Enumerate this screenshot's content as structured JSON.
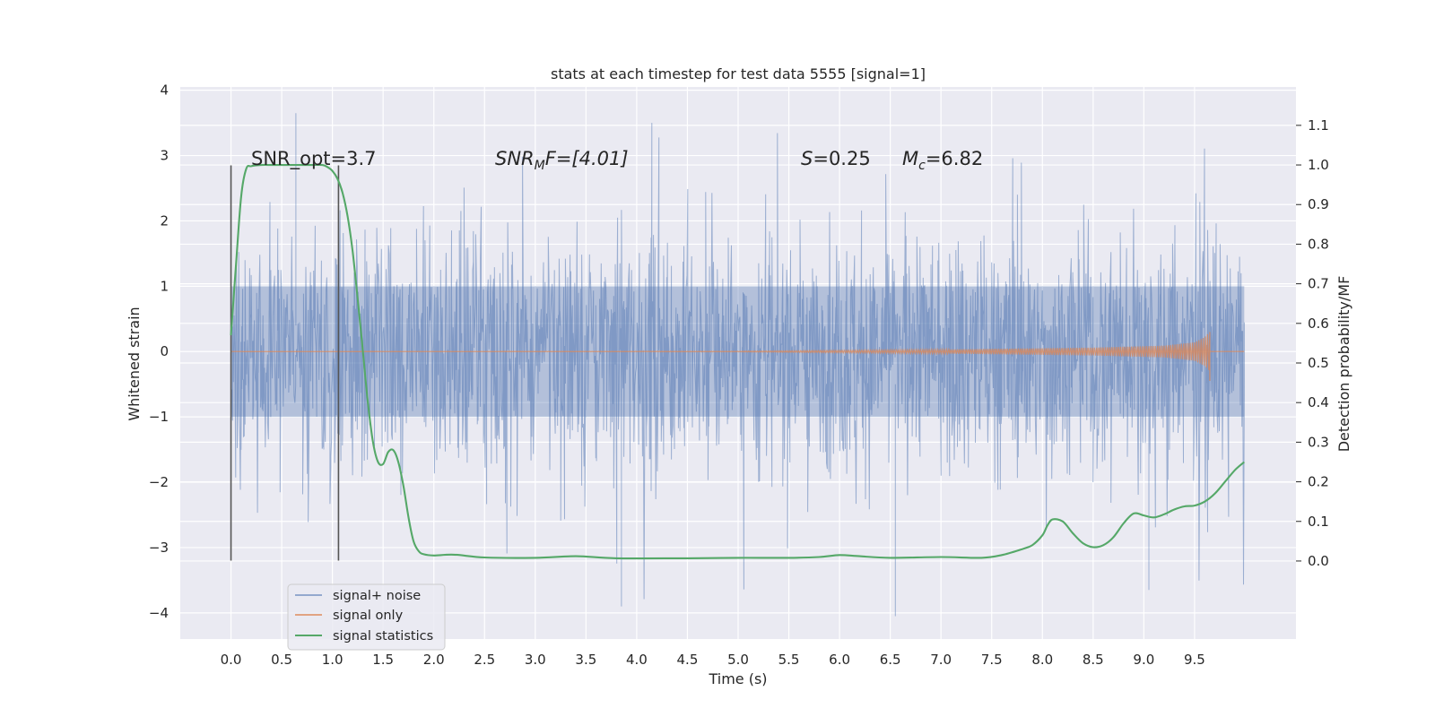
{
  "chart_data": {
    "type": "line",
    "title": "stats at each timestep for test data 5555 [signal=1]",
    "xlabel": "Time (s)",
    "ylabel": "Whitened strain",
    "ylabel_right": "Detection probability/MF",
    "xlim": [
      -0.5,
      10.5
    ],
    "ylim": [
      -4.4,
      4.05
    ],
    "ylim_right": [
      -0.197,
      1.197
    ],
    "x_ticks": [
      "0.0",
      "0.5",
      "1.0",
      "1.5",
      "2.0",
      "2.5",
      "3.0",
      "3.5",
      "4.0",
      "4.5",
      "5.0",
      "5.5",
      "6.0",
      "6.5",
      "7.0",
      "7.5",
      "8.0",
      "8.5",
      "9.0",
      "9.5"
    ],
    "y_ticks": [
      "4",
      "3",
      "2",
      "1",
      "0",
      "−1",
      "−2",
      "−3",
      "−4"
    ],
    "y_ticks_right": [
      "1.1",
      "1.0",
      "0.9",
      "0.8",
      "0.7",
      "0.6",
      "0.5",
      "0.4",
      "0.3",
      "0.2",
      "0.1",
      "0.0"
    ],
    "grid": true,
    "legend_position": "lower-left",
    "annotations": {
      "snr_opt": "SNR_opt=3.7",
      "snr_mf_main": "SNR",
      "snr_mf_sub": "M",
      "snr_mf_rest": "F=[4.01]",
      "s_main": "S",
      "s_rest": "=0.25",
      "mc_main": "M",
      "mc_sub": "c",
      "mc_rest": "=6.82"
    },
    "vertical_markers": [
      0.0,
      1.06
    ],
    "series": [
      {
        "name": "signal+ noise",
        "color": "#4c72b0",
        "x_range": [
          0.0,
          9.99
        ],
        "typical_amplitude": 1.6,
        "peak_max": 3.65,
        "peak_min": -4.05
      },
      {
        "name": "signal only",
        "color": "#dd8452",
        "x_range": [
          0.0,
          9.65
        ],
        "envelope": {
          "x": [
            0.0,
            5.0,
            7.0,
            8.5,
            9.2,
            9.5,
            9.6,
            9.65
          ],
          "amp": [
            0.0,
            0.005,
            0.03,
            0.06,
            0.09,
            0.14,
            0.22,
            0.3
          ]
        }
      },
      {
        "name": "signal statistics",
        "color": "#55a868",
        "axis": "right",
        "x": [
          0.0,
          0.05,
          0.1,
          0.15,
          0.2,
          0.3,
          0.4,
          0.5,
          0.6,
          0.7,
          0.8,
          0.9,
          0.95,
          1.0,
          1.05,
          1.1,
          1.15,
          1.2,
          1.25,
          1.3,
          1.35,
          1.4,
          1.45,
          1.5,
          1.55,
          1.6,
          1.65,
          1.7,
          1.75,
          1.8,
          1.85,
          1.9,
          2.0,
          2.2,
          2.5,
          3.0,
          3.4,
          3.8,
          4.5,
          5.0,
          5.5,
          5.8,
          6.0,
          6.2,
          6.5,
          7.0,
          7.4,
          7.6,
          7.8,
          7.9,
          8.0,
          8.05,
          8.1,
          8.2,
          8.3,
          8.4,
          8.5,
          8.6,
          8.7,
          8.8,
          8.9,
          9.0,
          9.1,
          9.2,
          9.3,
          9.4,
          9.5,
          9.6,
          9.7,
          9.8,
          9.9,
          9.99
        ],
        "y": [
          0.57,
          0.75,
          0.92,
          0.99,
          0.997,
          1.0,
          1.0,
          1.0,
          1.0,
          1.0,
          1.0,
          1.0,
          0.995,
          0.985,
          0.965,
          0.93,
          0.87,
          0.78,
          0.66,
          0.53,
          0.4,
          0.3,
          0.25,
          0.245,
          0.275,
          0.28,
          0.25,
          0.19,
          0.11,
          0.05,
          0.025,
          0.017,
          0.014,
          0.016,
          0.009,
          0.008,
          0.012,
          0.007,
          0.007,
          0.008,
          0.008,
          0.01,
          0.015,
          0.012,
          0.008,
          0.01,
          0.008,
          0.015,
          0.03,
          0.04,
          0.065,
          0.09,
          0.105,
          0.1,
          0.07,
          0.045,
          0.035,
          0.04,
          0.06,
          0.095,
          0.12,
          0.115,
          0.11,
          0.118,
          0.13,
          0.138,
          0.14,
          0.15,
          0.17,
          0.2,
          0.23,
          0.25
        ]
      }
    ]
  }
}
